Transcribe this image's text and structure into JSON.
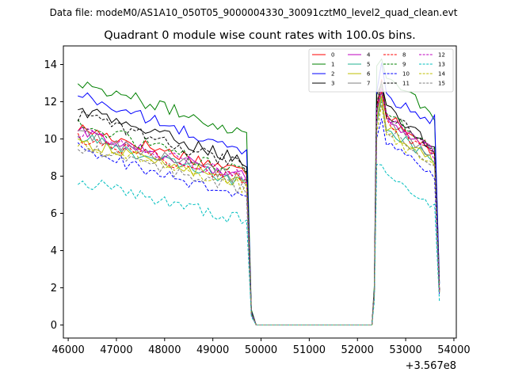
{
  "figure": {
    "suptitle": "Data file: modeM0/AS1A10_050T05_9000004330_30091cztM0_level2_quad_clean.evt",
    "title": "Quadrant 0 module wise count rates with 100.0s bins.",
    "x_offset_label": "+3.567e8"
  },
  "chart_data": {
    "type": "line",
    "title": "Quadrant 0 module wise count rates with 100.0s bins.",
    "xlabel": "",
    "ylabel": "",
    "x_offset": 356700000,
    "xlim": [
      45900,
      54050
    ],
    "ylim": [
      -0.7,
      15.0
    ],
    "xticks": [
      46000,
      47000,
      48000,
      49000,
      50000,
      51000,
      52000,
      53000,
      54000
    ],
    "yticks": [
      0,
      2,
      4,
      6,
      8,
      10,
      12,
      14
    ],
    "xtick_labels": [
      "46000",
      "47000",
      "48000",
      "49000",
      "50000",
      "51000",
      "52000",
      "53000",
      "54000"
    ],
    "ytick_labels": [
      "0",
      "2",
      "4",
      "6",
      "8",
      "10",
      "12",
      "14"
    ],
    "legend_position": "top-right",
    "gap": {
      "start": 49800,
      "end": 52300
    },
    "segment1": {
      "x_start": 46200,
      "step": 100,
      "n": 36
    },
    "segment2": {
      "x_start": 52400,
      "step": 100,
      "n": 13
    },
    "series": [
      {
        "name": "0",
        "color": "#ff0000",
        "dash": "solid",
        "level1": 10.6,
        "end1": 8.2,
        "level2": 11.9,
        "end2": 9.3,
        "peak": 13.2
      },
      {
        "name": "1",
        "color": "#008000",
        "dash": "solid",
        "level1": 13.1,
        "end1": 10.3,
        "level2": 14.0,
        "end2": 11.2,
        "peak": 14.3
      },
      {
        "name": "2",
        "color": "#0000ff",
        "dash": "solid",
        "level1": 12.4,
        "end1": 9.2,
        "level2": 12.5,
        "end2": 11.0,
        "peak": 14.1
      },
      {
        "name": "3",
        "color": "#000000",
        "dash": "solid",
        "level1": 11.6,
        "end1": 8.8,
        "level2": 12.2,
        "end2": 9.4,
        "peak": 13.0
      },
      {
        "name": "4",
        "color": "#bf00bf",
        "dash": "solid",
        "level1": 10.4,
        "end1": 7.9,
        "level2": 11.6,
        "end2": 9.2,
        "peak": 12.8
      },
      {
        "name": "5",
        "color": "#20b090",
        "dash": "solid",
        "level1": 10.1,
        "end1": 7.6,
        "level2": 11.0,
        "end2": 8.8,
        "peak": 12.2
      },
      {
        "name": "6",
        "color": "#bfbf00",
        "dash": "solid",
        "level1": 9.9,
        "end1": 7.6,
        "level2": 11.1,
        "end2": 8.7,
        "peak": 12.3
      },
      {
        "name": "7",
        "color": "#7f7f7f",
        "dash": "solid",
        "level1": 10.3,
        "end1": 7.8,
        "level2": 11.3,
        "end2": 9.0,
        "peak": 12.5
      },
      {
        "name": "8",
        "color": "#ff0000",
        "dash": "dashed",
        "level1": 10.1,
        "end1": 7.8,
        "level2": 11.4,
        "end2": 9.0,
        "peak": 12.6
      },
      {
        "name": "9",
        "color": "#008000",
        "dash": "dashed",
        "level1": 10.8,
        "end1": 8.1,
        "level2": 11.8,
        "end2": 9.4,
        "peak": 13.0
      },
      {
        "name": "10",
        "color": "#0000ff",
        "dash": "dashed",
        "level1": 9.5,
        "end1": 6.7,
        "level2": 10.2,
        "end2": 7.9,
        "peak": 11.1
      },
      {
        "name": "11",
        "color": "#000000",
        "dash": "dashed",
        "level1": 11.3,
        "end1": 8.5,
        "level2": 11.9,
        "end2": 9.4,
        "peak": 13.1
      },
      {
        "name": "12",
        "color": "#bf00bf",
        "dash": "dashed",
        "level1": 10.4,
        "end1": 7.9,
        "level2": 11.6,
        "end2": 9.1,
        "peak": 12.7
      },
      {
        "name": "13",
        "color": "#00bfbf",
        "dash": "dashed",
        "level1": 7.8,
        "end1": 5.6,
        "level2": 8.4,
        "end2": 6.3,
        "peak": 8.6
      },
      {
        "name": "14",
        "color": "#bfbf00",
        "dash": "dashed",
        "level1": 9.8,
        "end1": 7.4,
        "level2": 10.6,
        "end2": 8.5,
        "peak": 11.8
      },
      {
        "name": "15",
        "color": "#7f7f7f",
        "dash": "dashed",
        "level1": 9.6,
        "end1": 7.3,
        "level2": 10.9,
        "end2": 8.6,
        "peak": 12.0
      }
    ]
  }
}
